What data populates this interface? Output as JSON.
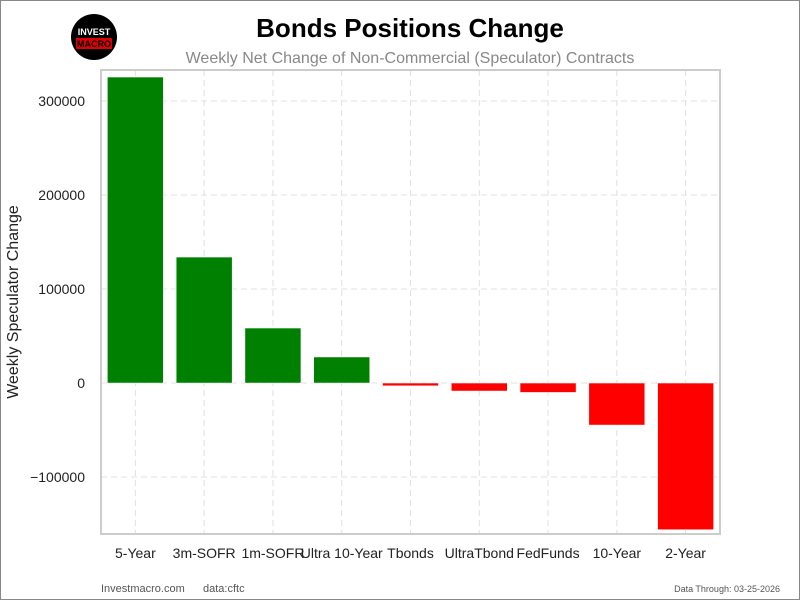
{
  "logo": {
    "line1": "INVEST",
    "line2": "MACRO"
  },
  "footer": {
    "site": "Investmacro.com",
    "source": "data:cftc",
    "through": "Data Through: 03-25-2026"
  },
  "colors": {
    "positive": "#008000",
    "negative": "#ff0000",
    "grid": "#e0e0e0",
    "axis": "#cccccc"
  },
  "chart_data": {
    "type": "bar",
    "title": "Bonds Positions Change",
    "subtitle": "Weekly Net Change of Non-Commercial (Speculator) Contracts",
    "xlabel": "",
    "ylabel": "Weekly Speculator Change",
    "categories": [
      "5-Year",
      "3m-SOFR",
      "1m-SOFR",
      "Ultra 10-Year",
      "Tbonds",
      "UltraTbond",
      "FedFunds",
      "10-Year",
      "2-Year"
    ],
    "values": [
      325500,
      134000,
      58500,
      27700,
      -3000,
      -8500,
      -10000,
      -44700,
      -156000
    ],
    "ylim": [
      -160600,
      333000
    ],
    "yticks": [
      -100000,
      0,
      100000,
      200000,
      300000
    ],
    "ytick_labels": [
      "−100000",
      "0",
      "100000",
      "200000",
      "300000"
    ],
    "grid": true
  }
}
